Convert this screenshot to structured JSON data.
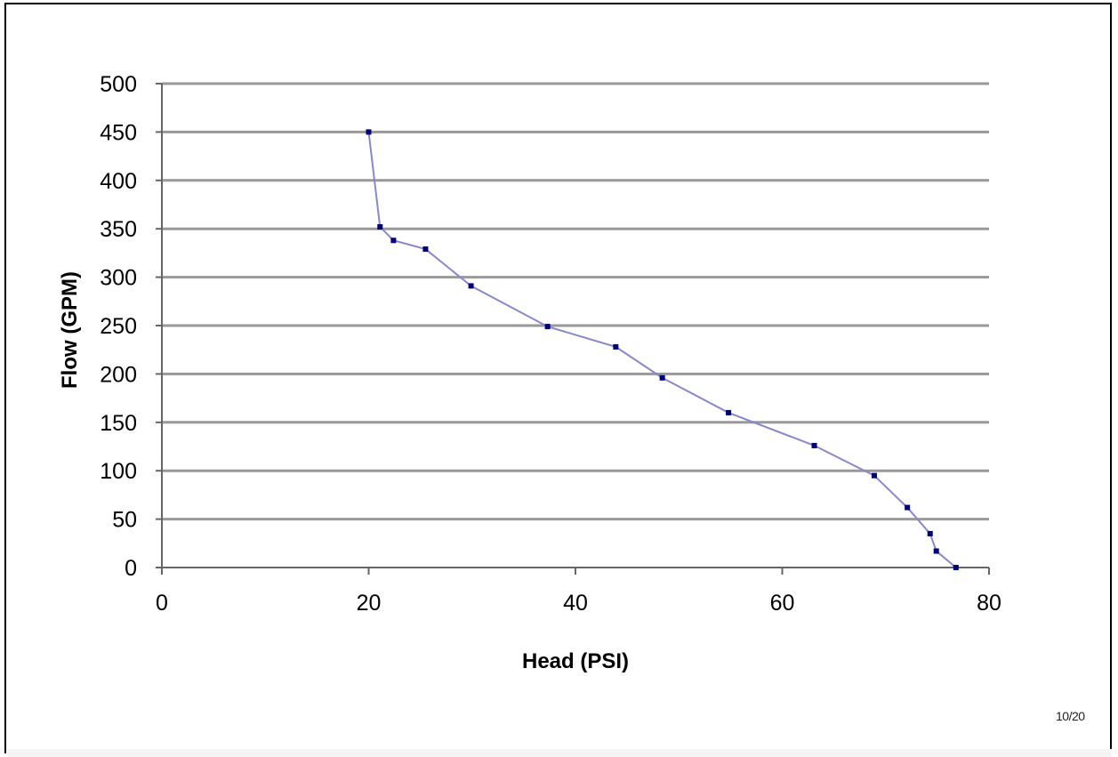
{
  "chart_data": {
    "type": "line",
    "title": "",
    "xlabel": "Head (PSI)",
    "ylabel": "Flow (GPM)",
    "xlim": [
      0,
      80
    ],
    "ylim": [
      0,
      500
    ],
    "xticks": [
      0,
      20,
      40,
      60,
      80
    ],
    "yticks": [
      0,
      50,
      100,
      150,
      200,
      250,
      300,
      350,
      400,
      450,
      500
    ],
    "grid": "horizontal",
    "legend": "none",
    "series": [
      {
        "x": [
          20,
          21.1,
          22.4,
          25.5,
          29.9,
          37.3,
          43.9,
          48.4,
          54.8,
          63.1,
          68.9,
          72.1,
          74.3,
          74.9,
          76.8
        ],
        "y": [
          450,
          352,
          338,
          329,
          291,
          249,
          228,
          196,
          160,
          126,
          95,
          62,
          35,
          17,
          0
        ]
      }
    ],
    "line_color": "#8888cc",
    "marker_color": "#00007a",
    "grid_color": "#999999"
  },
  "footer": {
    "page_number": "10/20"
  }
}
